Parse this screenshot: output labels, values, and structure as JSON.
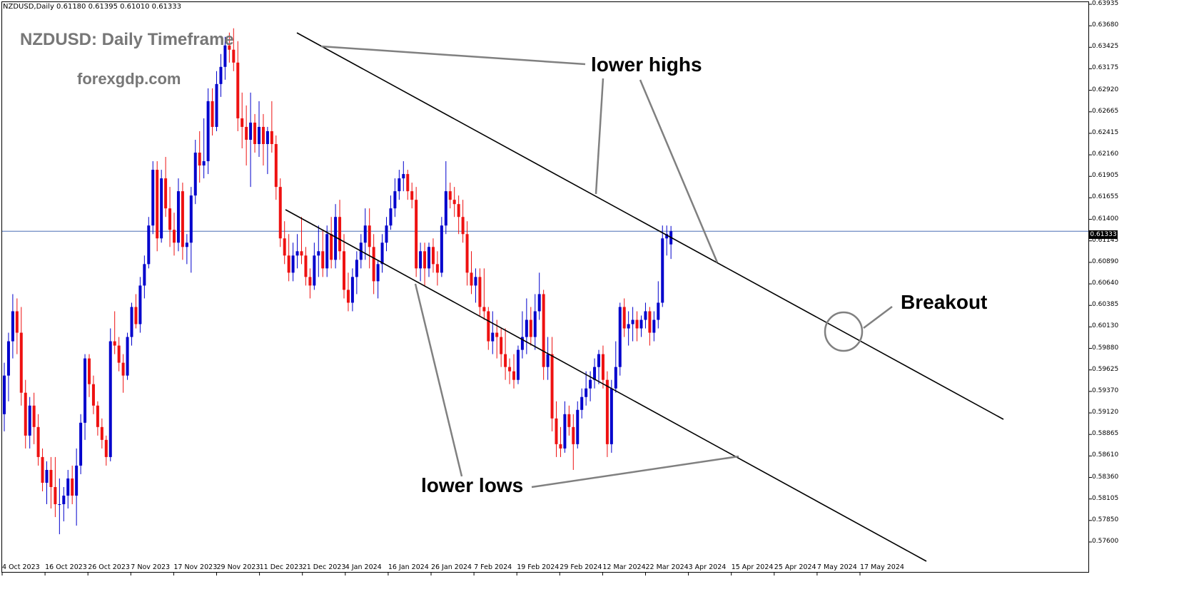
{
  "header": {
    "symbol_info": "NZDUSD,Daily  0.61180 0.61395 0.61010 0.61333",
    "title": "NZDUSD: Daily Timeframe",
    "site": "forexgdp.com"
  },
  "annotations": {
    "lower_highs": "lower highs",
    "lower_lows": "lower lows",
    "breakout": "Breakout"
  },
  "colors": {
    "bull": "#0000cc",
    "bear": "#ee1111",
    "channel": "#000000",
    "pointer": "#808080",
    "price_line": "#4a6fb5"
  },
  "chart_data": {
    "type": "candlestick",
    "symbol": "NZDUSD",
    "timeframe": "Daily",
    "ohlc_header": {
      "open": 0.6118,
      "high": 0.61395,
      "low": 0.6101,
      "close": 0.61333
    },
    "current_price_label": "0.61333",
    "current_price": 0.61333,
    "ylim": [
      0.5751,
      0.6398
    ],
    "y_ticks": [
      "0.63935",
      "0.63680",
      "0.63425",
      "0.63175",
      "0.62920",
      "0.62665",
      "0.62415",
      "0.62160",
      "0.61905",
      "0.61655",
      "0.61400",
      "0.61145",
      "0.60890",
      "0.60640",
      "0.60385",
      "0.60130",
      "0.59880",
      "0.59625",
      "0.59370",
      "0.59120",
      "0.58865",
      "0.58610",
      "0.58360",
      "0.58105",
      "0.57850",
      "0.57600"
    ],
    "x_ticks": [
      "4 Oct 2023",
      "16 Oct 2023",
      "26 Oct 2023",
      "7 Nov 2023",
      "17 Nov 2023",
      "29 Nov 2023",
      "11 Dec 2023",
      "21 Dec 2023",
      "4 Jan 2024",
      "16 Jan 2024",
      "26 Jan 2024",
      "7 Feb 2024",
      "19 Feb 2024",
      "29 Feb 2024",
      "12 Mar 2024",
      "22 Mar 2024",
      "3 Apr 2024",
      "15 Apr 2024",
      "25 Apr 2024",
      "7 May 2024",
      "17 May 2024"
    ],
    "candles": [
      [
        0.592,
        0.598,
        0.59,
        0.5965
      ],
      [
        0.5965,
        0.6015,
        0.5935,
        0.6005
      ],
      [
        0.6005,
        0.606,
        0.5985,
        0.604
      ],
      [
        0.604,
        0.6055,
        0.599,
        0.6015
      ],
      [
        0.6015,
        0.6045,
        0.593,
        0.5945
      ],
      [
        0.5945,
        0.596,
        0.588,
        0.5895
      ],
      [
        0.5895,
        0.594,
        0.588,
        0.593
      ],
      [
        0.593,
        0.5945,
        0.5885,
        0.5905
      ],
      [
        0.5905,
        0.592,
        0.586,
        0.587
      ],
      [
        0.587,
        0.588,
        0.583,
        0.584
      ],
      [
        0.584,
        0.5865,
        0.5815,
        0.5855
      ],
      [
        0.5855,
        0.587,
        0.581,
        0.5835
      ],
      [
        0.5835,
        0.587,
        0.58,
        0.5815
      ],
      [
        0.5815,
        0.5845,
        0.578,
        0.5815
      ],
      [
        0.5815,
        0.5835,
        0.5795,
        0.5825
      ],
      [
        0.5825,
        0.5855,
        0.581,
        0.5845
      ],
      [
        0.5845,
        0.586,
        0.5815,
        0.5825
      ],
      [
        0.5825,
        0.588,
        0.579,
        0.586
      ],
      [
        0.586,
        0.592,
        0.585,
        0.591
      ],
      [
        0.591,
        0.599,
        0.589,
        0.5985
      ],
      [
        0.5985,
        0.599,
        0.594,
        0.5955
      ],
      [
        0.5955,
        0.5965,
        0.592,
        0.593
      ],
      [
        0.593,
        0.5935,
        0.5895,
        0.5905
      ],
      [
        0.5905,
        0.5915,
        0.588,
        0.589
      ],
      [
        0.589,
        0.5895,
        0.586,
        0.587
      ],
      [
        0.587,
        0.602,
        0.5865,
        0.6005
      ],
      [
        0.6005,
        0.604,
        0.599,
        0.6
      ],
      [
        0.6,
        0.601,
        0.597,
        0.598
      ],
      [
        0.598,
        0.599,
        0.5945,
        0.5965
      ],
      [
        0.5965,
        0.6015,
        0.596,
        0.601
      ],
      [
        0.601,
        0.605,
        0.6,
        0.6045
      ],
      [
        0.6045,
        0.606,
        0.602,
        0.6025
      ],
      [
        0.6025,
        0.608,
        0.6015,
        0.607
      ],
      [
        0.607,
        0.6105,
        0.6055,
        0.6095
      ],
      [
        0.6095,
        0.615,
        0.609,
        0.614
      ],
      [
        0.614,
        0.6215,
        0.613,
        0.6205
      ],
      [
        0.6205,
        0.6215,
        0.611,
        0.6125
      ],
      [
        0.6125,
        0.6205,
        0.612,
        0.6195
      ],
      [
        0.6195,
        0.622,
        0.615,
        0.616
      ],
      [
        0.616,
        0.6185,
        0.6115,
        0.6135
      ],
      [
        0.6135,
        0.6155,
        0.6105,
        0.612
      ],
      [
        0.612,
        0.6195,
        0.611,
        0.618
      ],
      [
        0.618,
        0.619,
        0.61,
        0.6115
      ],
      [
        0.6115,
        0.613,
        0.6095,
        0.612
      ],
      [
        0.612,
        0.6185,
        0.6085,
        0.6175
      ],
      [
        0.6175,
        0.624,
        0.6165,
        0.6225
      ],
      [
        0.6225,
        0.625,
        0.619,
        0.621
      ],
      [
        0.621,
        0.6265,
        0.6195,
        0.6215
      ],
      [
        0.6215,
        0.63,
        0.62,
        0.6285
      ],
      [
        0.6285,
        0.63,
        0.6245,
        0.6255
      ],
      [
        0.6255,
        0.632,
        0.625,
        0.6305
      ],
      [
        0.6305,
        0.634,
        0.629,
        0.6325
      ],
      [
        0.6325,
        0.636,
        0.631,
        0.635
      ],
      [
        0.635,
        0.6365,
        0.633,
        0.6345
      ],
      [
        0.6345,
        0.637,
        0.632,
        0.633
      ],
      [
        0.633,
        0.6355,
        0.625,
        0.6265
      ],
      [
        0.6265,
        0.6295,
        0.623,
        0.6255
      ],
      [
        0.6255,
        0.628,
        0.621,
        0.624
      ],
      [
        0.624,
        0.6295,
        0.6185,
        0.626
      ],
      [
        0.626,
        0.627,
        0.6225,
        0.6235
      ],
      [
        0.6235,
        0.6285,
        0.622,
        0.6255
      ],
      [
        0.6255,
        0.627,
        0.621,
        0.6235
      ],
      [
        0.6235,
        0.6255,
        0.62,
        0.625
      ],
      [
        0.625,
        0.6285,
        0.6225,
        0.6235
      ],
      [
        0.6235,
        0.6245,
        0.617,
        0.6185
      ],
      [
        0.6185,
        0.6195,
        0.6115,
        0.6125
      ],
      [
        0.6125,
        0.6145,
        0.6095,
        0.6105
      ],
      [
        0.6105,
        0.613,
        0.6075,
        0.6085
      ],
      [
        0.6085,
        0.612,
        0.6075,
        0.6105
      ],
      [
        0.6105,
        0.613,
        0.609,
        0.611
      ],
      [
        0.611,
        0.615,
        0.6095,
        0.6105
      ],
      [
        0.6105,
        0.6115,
        0.607,
        0.608
      ],
      [
        0.608,
        0.609,
        0.6055,
        0.607
      ],
      [
        0.607,
        0.612,
        0.6065,
        0.6105
      ],
      [
        0.6105,
        0.614,
        0.608,
        0.611
      ],
      [
        0.611,
        0.6135,
        0.608,
        0.609
      ],
      [
        0.609,
        0.614,
        0.608,
        0.613
      ],
      [
        0.613,
        0.615,
        0.609,
        0.61
      ],
      [
        0.61,
        0.6165,
        0.609,
        0.615
      ],
      [
        0.615,
        0.617,
        0.61,
        0.611
      ],
      [
        0.611,
        0.613,
        0.6055,
        0.6065
      ],
      [
        0.6065,
        0.6085,
        0.604,
        0.605
      ],
      [
        0.605,
        0.609,
        0.604,
        0.608
      ],
      [
        0.608,
        0.611,
        0.606,
        0.61
      ],
      [
        0.61,
        0.613,
        0.609,
        0.612
      ],
      [
        0.612,
        0.616,
        0.61,
        0.614
      ],
      [
        0.614,
        0.616,
        0.609,
        0.6115
      ],
      [
        0.6115,
        0.613,
        0.606,
        0.6075
      ],
      [
        0.6075,
        0.61,
        0.6055,
        0.6095
      ],
      [
        0.6095,
        0.613,
        0.6085,
        0.612
      ],
      [
        0.612,
        0.615,
        0.611,
        0.614
      ],
      [
        0.614,
        0.6175,
        0.6135,
        0.616
      ],
      [
        0.616,
        0.6195,
        0.615,
        0.618
      ],
      [
        0.618,
        0.6205,
        0.617,
        0.6195
      ],
      [
        0.6195,
        0.6215,
        0.618,
        0.62
      ],
      [
        0.62,
        0.6205,
        0.617,
        0.618
      ],
      [
        0.618,
        0.619,
        0.616,
        0.617
      ],
      [
        0.617,
        0.6185,
        0.608,
        0.609
      ],
      [
        0.609,
        0.612,
        0.6075,
        0.611
      ],
      [
        0.611,
        0.612,
        0.607,
        0.609
      ],
      [
        0.609,
        0.612,
        0.608,
        0.6115
      ],
      [
        0.6115,
        0.6125,
        0.6085,
        0.6095
      ],
      [
        0.6095,
        0.611,
        0.607,
        0.6085
      ],
      [
        0.6085,
        0.615,
        0.608,
        0.614
      ],
      [
        0.614,
        0.6215,
        0.613,
        0.618
      ],
      [
        0.618,
        0.619,
        0.616,
        0.617
      ],
      [
        0.617,
        0.6185,
        0.615,
        0.6165
      ],
      [
        0.6165,
        0.6175,
        0.613,
        0.615
      ],
      [
        0.615,
        0.617,
        0.612,
        0.613
      ],
      [
        0.613,
        0.6145,
        0.607,
        0.6085
      ],
      [
        0.6085,
        0.611,
        0.606,
        0.607
      ],
      [
        0.607,
        0.609,
        0.605,
        0.608
      ],
      [
        0.608,
        0.609,
        0.6035,
        0.6045
      ],
      [
        0.6045,
        0.609,
        0.603,
        0.604
      ],
      [
        0.604,
        0.6045,
        0.5995,
        0.6005
      ],
      [
        0.6005,
        0.604,
        0.599,
        0.6015
      ],
      [
        0.6015,
        0.603,
        0.5985,
        0.601
      ],
      [
        0.601,
        0.602,
        0.5975,
        0.599
      ],
      [
        0.599,
        0.602,
        0.596,
        0.5975
      ],
      [
        0.5975,
        0.5985,
        0.5955,
        0.597
      ],
      [
        0.597,
        0.599,
        0.595,
        0.596
      ],
      [
        0.596,
        0.6,
        0.5955,
        0.5995
      ],
      [
        0.5995,
        0.604,
        0.5985,
        0.601
      ],
      [
        0.601,
        0.6055,
        0.599,
        0.603
      ],
      [
        0.603,
        0.6045,
        0.6,
        0.601
      ],
      [
        0.601,
        0.606,
        0.5995,
        0.604
      ],
      [
        0.604,
        0.6085,
        0.603,
        0.606
      ],
      [
        0.606,
        0.6065,
        0.596,
        0.5975
      ],
      [
        0.5975,
        0.601,
        0.596,
        0.599
      ],
      [
        0.599,
        0.601,
        0.59,
        0.5915
      ],
      [
        0.5915,
        0.5935,
        0.587,
        0.5885
      ],
      [
        0.5885,
        0.5905,
        0.587,
        0.588
      ],
      [
        0.588,
        0.5935,
        0.5875,
        0.592
      ],
      [
        0.592,
        0.593,
        0.5895,
        0.5905
      ],
      [
        0.5905,
        0.592,
        0.5855,
        0.5885
      ],
      [
        0.5885,
        0.5935,
        0.588,
        0.5925
      ],
      [
        0.5925,
        0.595,
        0.5915,
        0.594
      ],
      [
        0.594,
        0.597,
        0.593,
        0.595
      ],
      [
        0.595,
        0.597,
        0.5935,
        0.596
      ],
      [
        0.596,
        0.5985,
        0.595,
        0.5975
      ],
      [
        0.5975,
        0.5995,
        0.5955,
        0.599
      ],
      [
        0.599,
        0.6,
        0.595,
        0.596
      ],
      [
        0.596,
        0.597,
        0.587,
        0.5885
      ],
      [
        0.5885,
        0.596,
        0.5875,
        0.595
      ],
      [
        0.595,
        0.6005,
        0.5945,
        0.5975
      ],
      [
        0.5975,
        0.605,
        0.5965,
        0.6045
      ],
      [
        0.6045,
        0.6055,
        0.601,
        0.602
      ],
      [
        0.602,
        0.604,
        0.6,
        0.6025
      ],
      [
        0.6025,
        0.6045,
        0.6005,
        0.603
      ],
      [
        0.603,
        0.604,
        0.6005,
        0.602
      ],
      [
        0.602,
        0.6035,
        0.601,
        0.603
      ],
      [
        0.603,
        0.605,
        0.602,
        0.604
      ],
      [
        0.604,
        0.6045,
        0.6,
        0.6015
      ],
      [
        0.6015,
        0.604,
        0.6005,
        0.603
      ],
      [
        0.603,
        0.6075,
        0.602,
        0.605
      ],
      [
        0.605,
        0.614,
        0.6045,
        0.6125
      ],
      [
        0.6125,
        0.614,
        0.6105,
        0.613
      ],
      [
        0.6118,
        0.61395,
        0.6101,
        0.61333
      ]
    ]
  }
}
